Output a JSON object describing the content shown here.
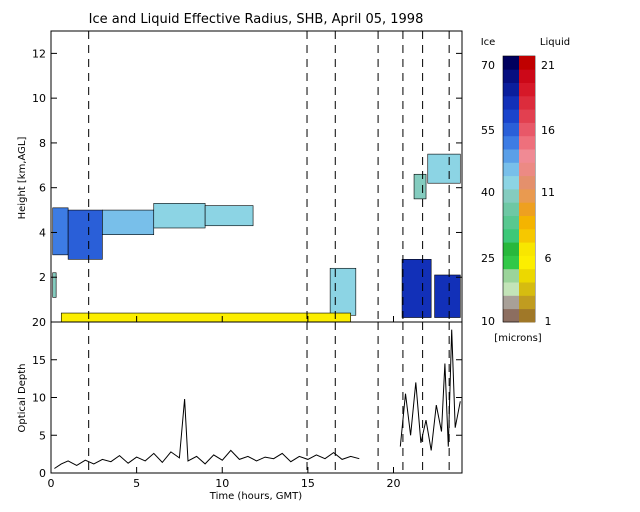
{
  "figure": {
    "title": "Ice and Liquid Effective Radius, SHB, April 05, 1998",
    "xlabel": "Time (hours, GMT)",
    "xticks": [
      "0",
      "5",
      "10",
      "15",
      "20"
    ]
  },
  "chart_data": [
    {
      "type": "heatmap",
      "title": "Ice and Liquid Effective Radius, SHB, April 05, 1998",
      "ylabel": "Height [km,AGL]",
      "xlim": [
        0,
        24
      ],
      "ylim": [
        0,
        13
      ],
      "yticks": [
        "2",
        "4",
        "6",
        "8",
        "10",
        "12"
      ],
      "x_gridlines_dashed": [
        2.2,
        14.95,
        16.6,
        19.1,
        20.55,
        21.7,
        23.25
      ],
      "layers": [
        {
          "phase": "ice",
          "t_start": 0.1,
          "t_end": 1.0,
          "base_km": 3.0,
          "top_km": 5.1,
          "r_um": 50
        },
        {
          "phase": "ice",
          "t_start": 1.0,
          "t_end": 3.0,
          "base_km": 2.8,
          "top_km": 5.0,
          "r_um": 55
        },
        {
          "phase": "ice",
          "t_start": 3.0,
          "t_end": 6.0,
          "base_km": 3.9,
          "top_km": 5.0,
          "r_um": 45
        },
        {
          "phase": "ice",
          "t_start": 6.0,
          "t_end": 9.0,
          "base_km": 4.2,
          "top_km": 5.3,
          "r_um": 43
        },
        {
          "phase": "ice",
          "t_start": 9.0,
          "t_end": 11.8,
          "base_km": 4.3,
          "top_km": 5.2,
          "r_um": 40
        },
        {
          "phase": "ice",
          "t_start": 0.1,
          "t_end": 0.3,
          "base_km": 1.1,
          "top_km": 2.2,
          "r_um": 38
        },
        {
          "phase": "ice",
          "t_start": 16.3,
          "t_end": 17.8,
          "base_km": 0.3,
          "top_km": 2.4,
          "r_um": 40
        },
        {
          "phase": "ice",
          "t_start": 20.5,
          "t_end": 22.2,
          "base_km": 0.2,
          "top_km": 2.8,
          "r_um": 62
        },
        {
          "phase": "ice",
          "t_start": 22.4,
          "t_end": 23.9,
          "base_km": 0.2,
          "top_km": 2.1,
          "r_um": 60
        },
        {
          "phase": "ice",
          "t_start": 22.0,
          "t_end": 23.9,
          "base_km": 6.2,
          "top_km": 7.5,
          "r_um": 40
        },
        {
          "phase": "ice",
          "t_start": 21.2,
          "t_end": 21.9,
          "base_km": 5.5,
          "top_km": 6.6,
          "r_um": 38
        },
        {
          "phase": "liquid",
          "t_start": 0.6,
          "t_end": 17.5,
          "base_km": 0.0,
          "top_km": 0.4,
          "r_um": 5
        }
      ]
    },
    {
      "type": "line",
      "ylabel": "Optical Depth",
      "xlim": [
        0,
        24
      ],
      "ylim": [
        0,
        20
      ],
      "yticks": [
        "0",
        "5",
        "10",
        "15",
        "20"
      ],
      "series": [
        {
          "x": [
            0.2,
            0.6,
            1.0,
            1.5,
            2.0,
            2.5,
            3.0,
            3.5,
            4.0,
            4.5,
            5.0,
            5.5,
            6.0,
            6.5,
            7.0,
            7.5,
            7.8,
            8.0,
            8.5,
            9.0,
            9.5,
            10.0,
            10.5,
            11.0,
            11.5,
            12.0,
            12.5,
            13.0,
            13.5,
            14.0,
            14.5,
            15.0,
            15.5,
            16.0,
            16.5,
            17.0,
            17.5,
            18.0
          ],
          "y": [
            0.6,
            1.2,
            1.6,
            1.0,
            1.7,
            1.2,
            1.8,
            1.5,
            2.3,
            1.3,
            2.1,
            1.6,
            2.6,
            1.4,
            2.8,
            2.0,
            9.8,
            1.6,
            2.2,
            1.2,
            2.4,
            1.7,
            3.0,
            1.8,
            2.2,
            1.6,
            2.1,
            1.9,
            2.6,
            1.5,
            2.2,
            1.8,
            2.4,
            1.9,
            2.7,
            1.8,
            2.2,
            1.9
          ]
        },
        {
          "x": [
            20.4,
            20.7,
            21.0,
            21.3,
            21.6,
            21.9,
            22.2,
            22.5,
            22.8,
            23.0,
            23.2,
            23.4,
            23.6,
            23.9
          ],
          "y": [
            3.5,
            10.5,
            5.0,
            12.0,
            4.0,
            7.0,
            3.0,
            9.0,
            5.5,
            14.5,
            3.5,
            19.0,
            6.0,
            9.5
          ]
        }
      ]
    }
  ],
  "colorbar": {
    "ice_header": "Ice",
    "liquid_header": "Liquid",
    "units": "[microns]",
    "ice_labels": [
      "70",
      "55",
      "40",
      "25",
      "10"
    ],
    "liquid_labels": [
      "21",
      "16",
      "11",
      "6",
      "1"
    ],
    "ice_colors": [
      "#8c6e60",
      "#a8a098",
      "#c3e4b8",
      "#9bd49a",
      "#32c848",
      "#28b83c",
      "#3cc878",
      "#58c890",
      "#6ec8a4",
      "#84ccbf",
      "#8cd4e4",
      "#78bfea",
      "#5a9fe8",
      "#3d7ce4",
      "#2a5fd8",
      "#1a44cc",
      "#1230b8",
      "#0a1e9c",
      "#060f80",
      "#00005e"
    ],
    "liquid_colors": [
      "#a07828",
      "#c09c20",
      "#d6bc10",
      "#ecd800",
      "#fcee00",
      "#f8e600",
      "#f6c800",
      "#f4b400",
      "#eea020",
      "#e99a50",
      "#e4906c",
      "#ec8a84",
      "#f08a94",
      "#ee707c",
      "#e85868",
      "#e24050",
      "#dc2c3c",
      "#d61828",
      "#cc0818",
      "#c00000"
    ]
  }
}
